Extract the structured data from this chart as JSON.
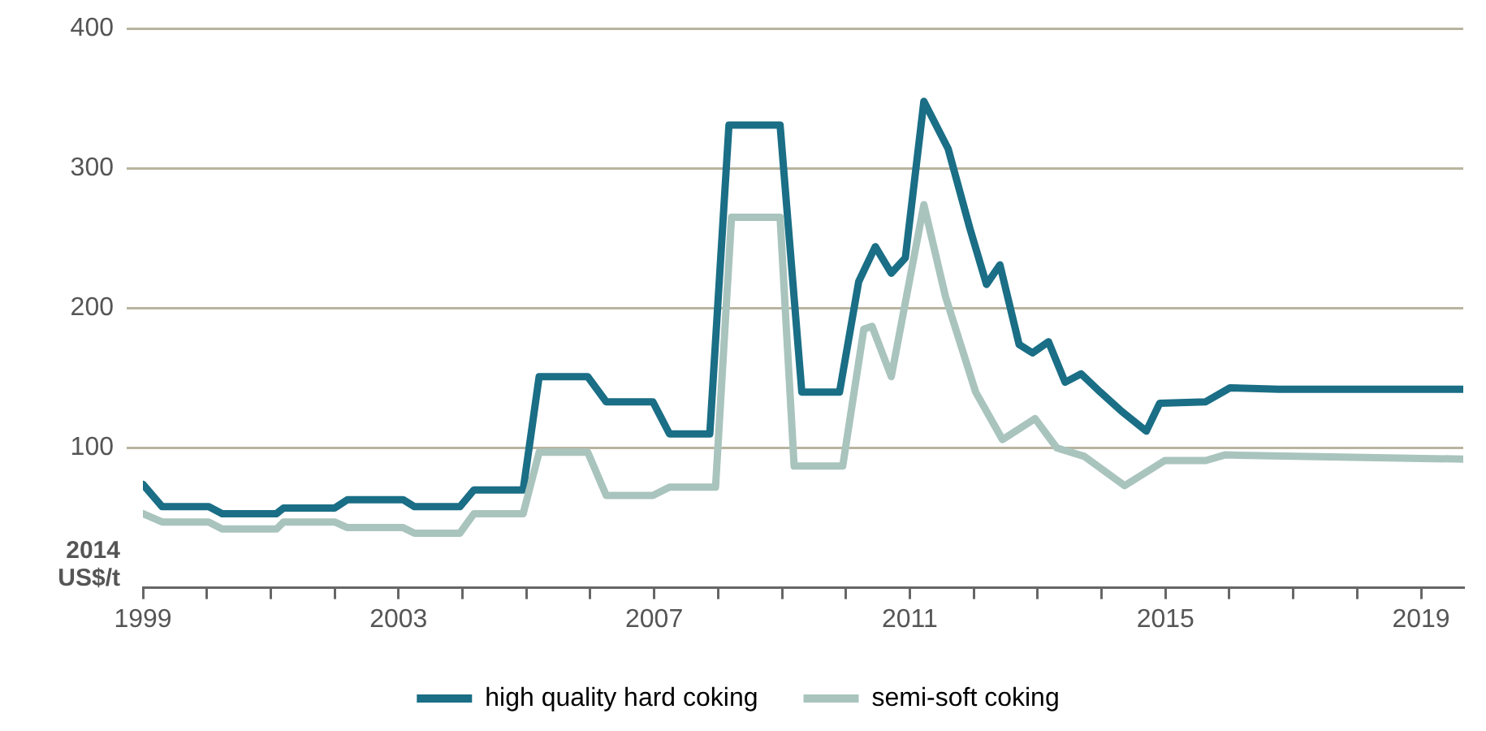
{
  "chart_data": {
    "type": "line",
    "ylabel": "2014 US$/t",
    "xlim": [
      1999,
      2019.66
    ],
    "ylim": [
      0,
      400
    ],
    "xticks": [
      1999,
      {
        "value": 2000,
        "label": null
      },
      {
        "value": 2001,
        "label": null
      },
      {
        "value": 2002,
        "label": null
      },
      2003,
      {
        "value": 2004,
        "label": null
      },
      {
        "value": 2005,
        "label": null
      },
      {
        "value": 2006,
        "label": null
      },
      2007,
      {
        "value": 2008,
        "label": null
      },
      {
        "value": 2009,
        "label": null
      },
      {
        "value": 2010,
        "label": null
      },
      2011,
      {
        "value": 2012,
        "label": null
      },
      {
        "value": 2013,
        "label": null
      },
      {
        "value": 2014,
        "label": null
      },
      2015,
      {
        "value": 2016,
        "label": null
      },
      {
        "value": 2017,
        "label": null
      },
      {
        "value": 2018,
        "label": null
      },
      2019
    ],
    "yticks": [
      100,
      200,
      300,
      400
    ],
    "grid": "y",
    "legend": "bottom",
    "marker": "none",
    "line_style": "solid",
    "series": [
      {
        "name": "high quality hard coking",
        "color": "#1a6e85",
        "x": [
          1999.0,
          1999.3,
          2000.03,
          2000.24,
          2001.09,
          2001.2,
          2002.0,
          2002.2,
          2003.07,
          2003.25,
          2003.96,
          2004.18,
          2004.95,
          2005.2,
          2005.96,
          2006.25,
          2006.98,
          2007.24,
          2007.87,
          2008.17,
          2008.97,
          2009.31,
          2009.9,
          2010.2,
          2010.46,
          2010.71,
          2010.93,
          2011.22,
          2011.6,
          2011.94,
          2012.2,
          2012.41,
          2012.71,
          2012.92,
          2013.17,
          2013.43,
          2013.68,
          2013.98,
          2014.32,
          2014.7,
          2014.91,
          2015.63,
          2016.01,
          2016.78,
          2019.66
        ],
        "values": [
          74,
          58,
          58,
          53,
          53,
          57,
          57,
          63,
          63,
          58,
          58,
          70,
          70,
          151,
          151,
          133,
          133,
          110,
          110,
          331,
          331,
          140,
          140,
          219,
          244,
          225,
          236,
          348,
          314,
          257,
          217,
          231,
          174,
          168,
          176,
          147,
          153,
          140,
          126,
          112,
          132,
          133,
          143,
          142,
          142
        ]
      },
      {
        "name": "semi-soft coking",
        "color": "#a9c4bd",
        "x": [
          1999.0,
          1999.3,
          2000.03,
          2000.24,
          2001.09,
          2001.2,
          2002.0,
          2002.2,
          2003.07,
          2003.25,
          2003.96,
          2004.18,
          2004.95,
          2005.2,
          2005.96,
          2006.25,
          2006.98,
          2007.24,
          2007.96,
          2008.21,
          2008.97,
          2009.19,
          2009.95,
          2010.28,
          2010.41,
          2010.71,
          2011.22,
          2011.56,
          2012.03,
          2012.45,
          2012.96,
          2013.3,
          2013.73,
          2014.36,
          2014.99,
          2015.63,
          2015.93,
          2019.66
        ],
        "values": [
          53,
          47,
          47,
          42,
          42,
          47,
          47,
          43,
          43,
          39,
          39,
          53,
          53,
          97,
          97,
          66,
          66,
          72,
          72,
          265,
          265,
          87,
          87,
          185,
          187,
          151,
          274,
          208,
          140,
          106,
          121,
          100,
          94,
          73,
          91,
          91,
          95,
          92
        ]
      }
    ]
  }
}
